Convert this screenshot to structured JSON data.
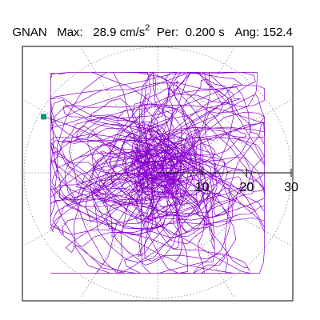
{
  "header": {
    "station": "GNAN",
    "max_label": "Max:",
    "max_value": "28.9 cm/s",
    "max_exponent": "2",
    "period_label": "Per:",
    "period_value": "0.200 s",
    "angle_label": "Ang:",
    "angle_value": "152.4"
  },
  "colors": {
    "trace": "#8800cc",
    "marker": "#009977",
    "grid": "#888888",
    "axis": "#000000",
    "frame": "#000000"
  },
  "chart_data": {
    "type": "scatter",
    "subtype": "polar-particle-motion",
    "title": "",
    "xlabel": "",
    "ylabel": "",
    "units": "cm/s^2",
    "r_ticks": [
      "10",
      "20",
      "30"
    ],
    "r_tick_values": [
      10,
      20,
      30
    ],
    "r_max": 30,
    "angular_grid_deg": 30,
    "grid": true,
    "max_amplitude": 28.9,
    "max_angle_deg": 152.4,
    "trace_note": "dense orbital trajectory centred near origin (approximate)",
    "end_marker": {
      "x": -25.6,
      "y": 13.4
    }
  }
}
